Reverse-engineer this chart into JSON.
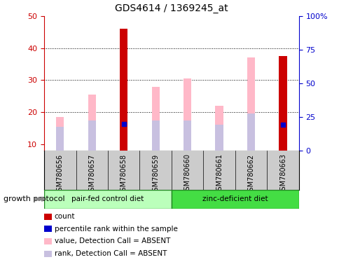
{
  "title": "GDS4614 / 1369245_at",
  "samples": [
    "GSM780656",
    "GSM780657",
    "GSM780658",
    "GSM780659",
    "GSM780660",
    "GSM780661",
    "GSM780662",
    "GSM780663"
  ],
  "count_values": [
    null,
    null,
    46,
    null,
    null,
    null,
    null,
    37.5
  ],
  "value_absent": [
    18.5,
    25.5,
    null,
    28,
    30.5,
    22,
    37,
    null
  ],
  "rank_absent": [
    15.5,
    17.5,
    null,
    17.5,
    17.5,
    16,
    19.5,
    null
  ],
  "percentile_rank": [
    null,
    null,
    20,
    null,
    null,
    null,
    null,
    19.5
  ],
  "ylim_left": [
    8,
    50
  ],
  "ylim_right": [
    0,
    100
  ],
  "yticks_left": [
    10,
    20,
    30,
    40,
    50
  ],
  "yticks_right": [
    0,
    25,
    50,
    75,
    100
  ],
  "ytick_labels_right": [
    "0",
    "25",
    "50",
    "75",
    "100%"
  ],
  "group1_label": "pair-fed control diet",
  "group2_label": "zinc-deficient diet",
  "group1_indices": [
    0,
    1,
    2,
    3
  ],
  "group2_indices": [
    4,
    5,
    6,
    7
  ],
  "protocol_label": "growth protocol",
  "color_count": "#cc0000",
  "color_percentile": "#0000cc",
  "color_value_absent": "#ffb8c8",
  "color_rank_absent": "#c8c0e0",
  "color_group1_bg": "#bbffbb",
  "color_group2_bg": "#44dd44",
  "color_group_border": "#228822",
  "color_sample_bg": "#cccccc",
  "color_axis_left": "#cc0000",
  "color_axis_right": "#0000cc",
  "bar_width": 0.25,
  "legend_items": [
    {
      "color": "#cc0000",
      "label": "count"
    },
    {
      "color": "#0000cc",
      "label": "percentile rank within the sample"
    },
    {
      "color": "#ffb8c8",
      "label": "value, Detection Call = ABSENT"
    },
    {
      "color": "#c8c0e0",
      "label": "rank, Detection Call = ABSENT"
    }
  ],
  "figsize": [
    4.85,
    3.84
  ],
  "dpi": 100
}
